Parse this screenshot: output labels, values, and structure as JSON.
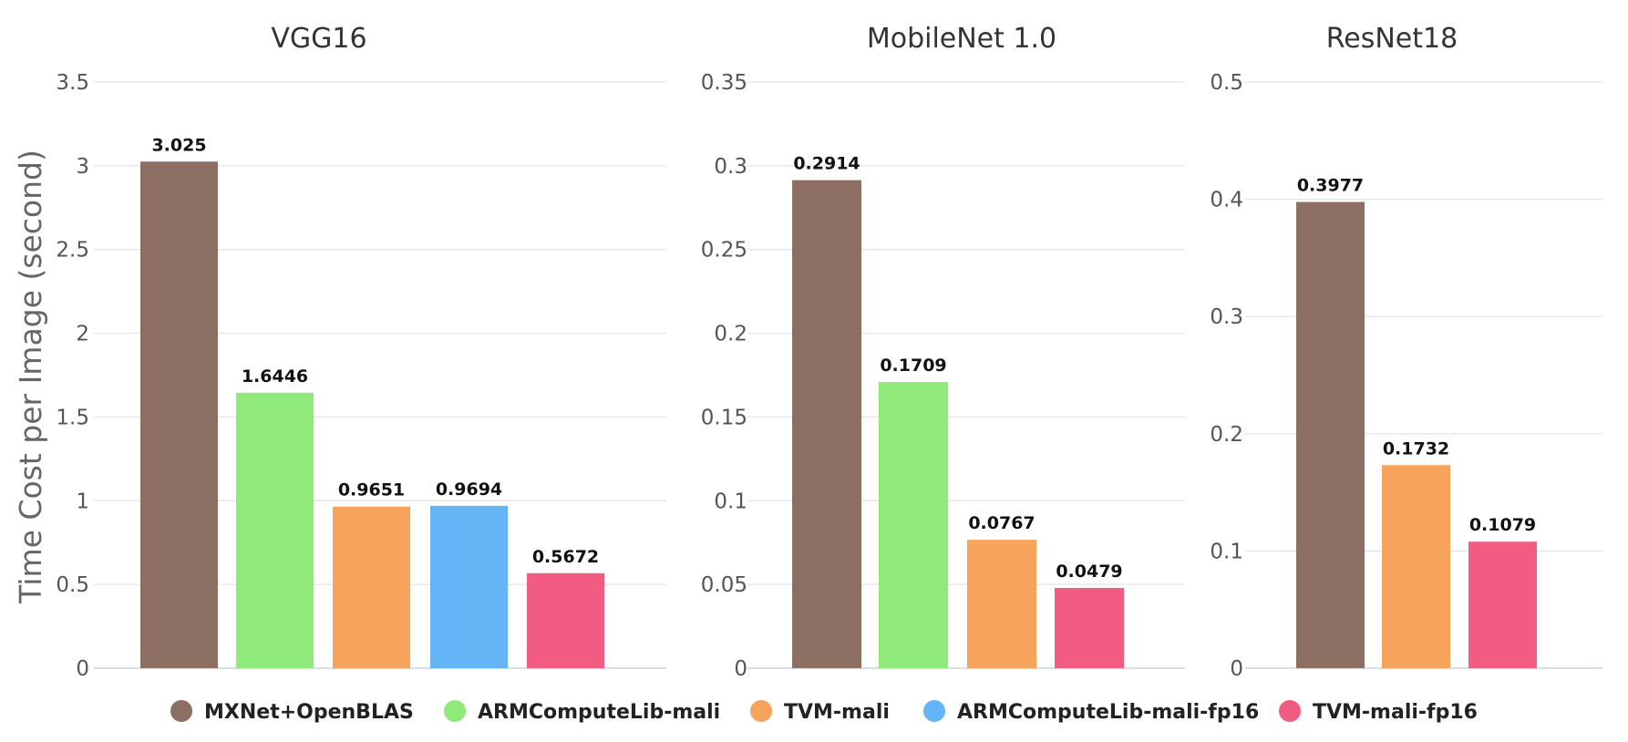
{
  "chart_data": {
    "type": "bar",
    "ylabel": "Time Cost per Image (second)",
    "legend_position": "bottom",
    "grid": true,
    "series": [
      {
        "name": "MXNet+OpenBLAS",
        "color": "#8d6e63"
      },
      {
        "name": "ARMComputeLib-mali",
        "color": "#90ea7a"
      },
      {
        "name": "TVM-mali",
        "color": "#f7a35c"
      },
      {
        "name": "ARMComputeLib-mali-fp16",
        "color": "#63b5f6"
      },
      {
        "name": "TVM-mali-fp16",
        "color": "#f25c82"
      }
    ],
    "panels": [
      {
        "title": "VGG16",
        "ylim": [
          0,
          3.5
        ],
        "yticks": [
          "0",
          "0.5",
          "1",
          "1.5",
          "2",
          "2.5",
          "3",
          "3.5"
        ],
        "bars": [
          {
            "series": "MXNet+OpenBLAS",
            "value": 3.025,
            "label": "3.025"
          },
          {
            "series": "ARMComputeLib-mali",
            "value": 1.6446,
            "label": "1.6446"
          },
          {
            "series": "TVM-mali",
            "value": 0.9651,
            "label": "0.9651"
          },
          {
            "series": "ARMComputeLib-mali-fp16",
            "value": 0.9694,
            "label": "0.9694"
          },
          {
            "series": "TVM-mali-fp16",
            "value": 0.5672,
            "label": "0.5672"
          }
        ]
      },
      {
        "title": "MobileNet 1.0",
        "ylim": [
          0,
          0.35
        ],
        "yticks": [
          "0",
          "0.05",
          "0.1",
          "0.15",
          "0.2",
          "0.25",
          "0.3",
          "0.35"
        ],
        "bars": [
          {
            "series": "MXNet+OpenBLAS",
            "value": 0.2914,
            "label": "0.2914"
          },
          {
            "series": "ARMComputeLib-mali",
            "value": 0.1709,
            "label": "0.1709"
          },
          {
            "series": "TVM-mali",
            "value": 0.0767,
            "label": "0.0767"
          },
          {
            "series": "TVM-mali-fp16",
            "value": 0.0479,
            "label": "0.0479"
          }
        ]
      },
      {
        "title": "ResNet18",
        "ylim": [
          0,
          0.5
        ],
        "yticks": [
          "0",
          "0.1",
          "0.2",
          "0.3",
          "0.4",
          "0.5"
        ],
        "bars": [
          {
            "series": "MXNet+OpenBLAS",
            "value": 0.3977,
            "label": "0.3977"
          },
          {
            "series": "TVM-mali",
            "value": 0.1732,
            "label": "0.1732"
          },
          {
            "series": "TVM-mali-fp16",
            "value": 0.1079,
            "label": "0.1079"
          }
        ]
      }
    ]
  }
}
